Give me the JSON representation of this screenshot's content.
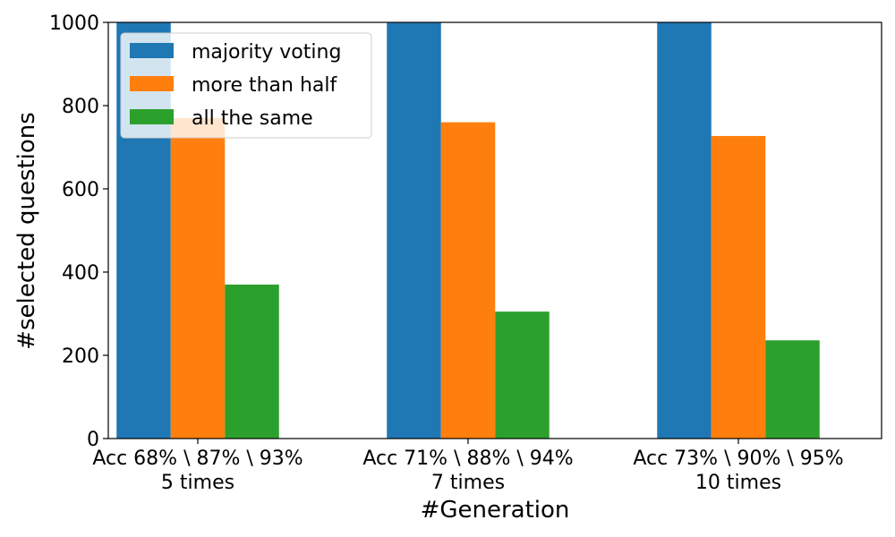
{
  "chart_data": {
    "type": "bar",
    "title": "",
    "xlabel": "#Generation",
    "ylabel": "#selected questions",
    "ylim": [
      0,
      1000
    ],
    "yticks": [
      0,
      200,
      400,
      600,
      800,
      1000
    ],
    "categories": [
      {
        "line1": "Acc 68% \\ 87% \\ 93%",
        "line2": "5 times"
      },
      {
        "line1": "Acc 71% \\ 88% \\ 94%",
        "line2": "7 times"
      },
      {
        "line1": "Acc 73% \\ 90% \\ 95%",
        "line2": "10 times"
      }
    ],
    "series": [
      {
        "name": "majority voting",
        "color": "#1f77b4",
        "values": [
          1000,
          1000,
          1000
        ]
      },
      {
        "name": "more than half",
        "color": "#ff7f0e",
        "values": [
          770,
          760,
          727
        ]
      },
      {
        "name": "all the same",
        "color": "#2ca02c",
        "values": [
          370,
          305,
          236
        ]
      }
    ],
    "legend_position": "top-left",
    "grid": false
  }
}
